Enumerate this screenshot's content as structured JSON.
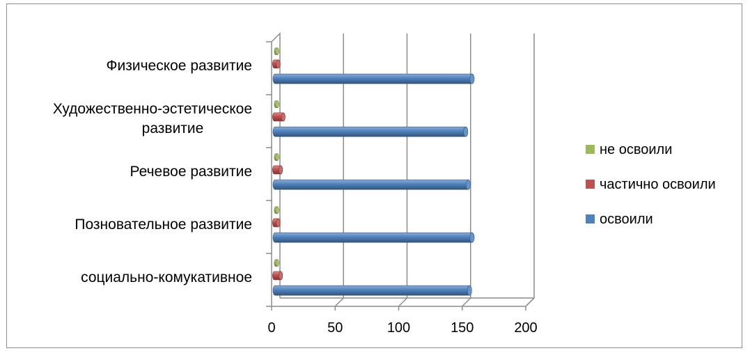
{
  "chart_data": {
    "type": "bar",
    "orientation": "horizontal",
    "style": "3d-cylinder",
    "categories": [
      [
        "Физическое развитие"
      ],
      [
        "Художественно-эстетическое",
        "развитие"
      ],
      [
        "Речевое развитие"
      ],
      [
        "Позновательное развитие"
      ],
      [
        "социально-комукативное"
      ]
    ],
    "series": [
      {
        "name": "освоили",
        "color": "#4F81BD",
        "values": [
          155,
          150,
          152,
          155,
          153
        ]
      },
      {
        "name": "частично освоили",
        "color": "#C0504D",
        "values": [
          3,
          7,
          5,
          3,
          5
        ]
      },
      {
        "name": "не освоили",
        "color": "#9BBB59",
        "values": [
          1,
          1,
          1,
          1,
          1
        ]
      }
    ],
    "xlim": [
      0,
      200
    ],
    "xticks": [
      "0",
      "50",
      "100",
      "150",
      "200"
    ],
    "grid": true,
    "legend_position": "right"
  }
}
